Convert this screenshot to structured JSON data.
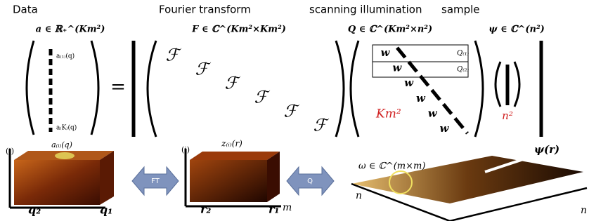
{
  "header": {
    "data": "Data",
    "fourier": "Fourier transform",
    "scanning": "scanning illumination",
    "sample": "sample"
  },
  "equation": {
    "a_def": "a ∈ ℝ₊^(Km²)",
    "F_def": "F ∈ ℂ^(Km²×Km²)",
    "Q_def": "Q ∈ ℂ^(Km²×n²)",
    "psi_def": "ψ ∈ ℂ^(n²)",
    "a_first": "a₍₁₎(q)",
    "a_last": "a₍K₎(q)",
    "equals": "=",
    "F_blocks": [
      "ℱ",
      "ℱ",
      "ℱ",
      "ℱ",
      "ℱ",
      "ℱ"
    ],
    "w_blocks": [
      "w",
      "w",
      "w",
      "w",
      "w",
      "w"
    ],
    "Q1": "Q₍₁₎",
    "Q2": "Q₍₂₎",
    "Km2": "Km²",
    "n2": "n²"
  },
  "panels": {
    "data": {
      "label": "a₍ᵢ₎(q)",
      "axis_i": "(i)",
      "axis_q2": "q₂",
      "axis_q1": "q₁"
    },
    "ft_arrow": "FT",
    "fourier": {
      "label": "z₍ᵢ₎(r)",
      "axis_i": "(i)",
      "axis_r2": "r₂",
      "axis_r1": "r₁",
      "axis_m": "m"
    },
    "q_arrow": "Q",
    "sample": {
      "label": "ψ(r)",
      "omega": "ω ∈ ℂ^(m×m)",
      "axis_left": "n",
      "axis_right": "n"
    }
  }
}
